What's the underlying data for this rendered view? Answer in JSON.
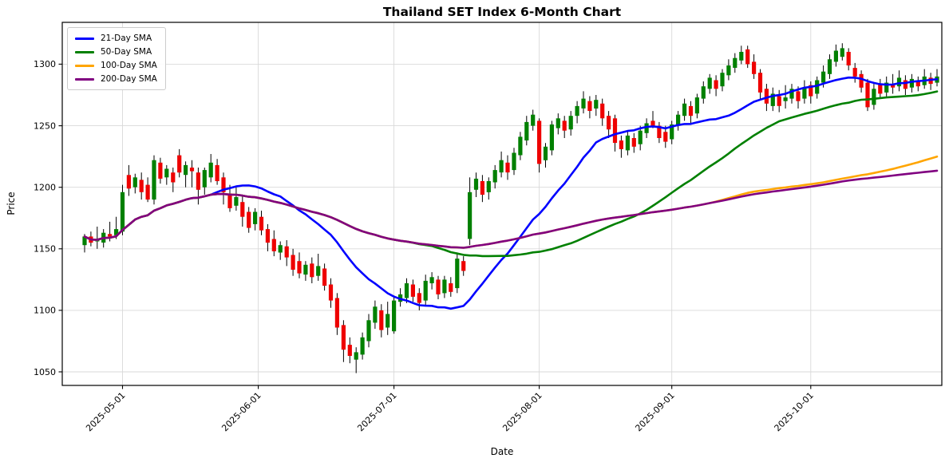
{
  "chart_data": {
    "type": "candlestick",
    "title": "Thailand SET Index 6-Month Chart",
    "xlabel": "Date",
    "ylabel": "Price",
    "ylim": [
      1039,
      1334
    ],
    "yticks": [
      1050,
      1100,
      1150,
      1200,
      1250,
      1300
    ],
    "xticks": [
      {
        "index": 6,
        "label": "2025-05-01"
      },
      {
        "index": 27.5,
        "label": "2025-06-01"
      },
      {
        "index": 49,
        "label": "2025-07-01"
      },
      {
        "index": 72,
        "label": "2025-08-01"
      },
      {
        "index": 93,
        "label": "2025-09-01"
      },
      {
        "index": 115,
        "label": "2025-10-01"
      }
    ],
    "grid": true,
    "legend_position": "upper-left",
    "colors": {
      "up": "#008000",
      "down": "#ee0000",
      "wick": "#000000",
      "grid": "#d9d9d9",
      "spine": "#000000"
    },
    "overlays": [
      {
        "name": "21-Day SMA",
        "window": 21,
        "color": "#0000ff"
      },
      {
        "name": "50-Day SMA",
        "window": 50,
        "color": "#008000"
      },
      {
        "name": "100-Day SMA",
        "window": 100,
        "color": "#ffa500"
      },
      {
        "name": "200-Day SMA",
        "window": 200,
        "color": "#800080"
      }
    ],
    "dates": [
      "2025-04-23",
      "2025-04-24",
      "2025-04-25",
      "2025-04-28",
      "2025-04-29",
      "2025-04-30",
      "2025-05-01",
      "2025-05-02",
      "2025-05-05",
      "2025-05-06",
      "2025-05-07",
      "2025-05-08",
      "2025-05-09",
      "2025-05-12",
      "2025-05-13",
      "2025-05-14",
      "2025-05-15",
      "2025-05-16",
      "2025-05-19",
      "2025-05-20",
      "2025-05-21",
      "2025-05-22",
      "2025-05-23",
      "2025-05-26",
      "2025-05-27",
      "2025-05-28",
      "2025-05-29",
      "2025-05-30",
      "2025-06-02",
      "2025-06-03",
      "2025-06-04",
      "2025-06-05",
      "2025-06-06",
      "2025-06-09",
      "2025-06-10",
      "2025-06-11",
      "2025-06-12",
      "2025-06-13",
      "2025-06-16",
      "2025-06-17",
      "2025-06-18",
      "2025-06-19",
      "2025-06-20",
      "2025-06-23",
      "2025-06-24",
      "2025-06-25",
      "2025-06-26",
      "2025-06-27",
      "2025-06-30",
      "2025-07-01",
      "2025-07-02",
      "2025-07-03",
      "2025-07-04",
      "2025-07-07",
      "2025-07-08",
      "2025-07-09",
      "2025-07-10",
      "2025-07-11",
      "2025-07-14",
      "2025-07-15",
      "2025-07-16",
      "2025-07-17",
      "2025-07-18",
      "2025-07-21",
      "2025-07-22",
      "2025-07-23",
      "2025-07-24",
      "2025-07-25",
      "2025-07-28",
      "2025-07-29",
      "2025-07-30",
      "2025-07-31",
      "2025-08-01",
      "2025-08-04",
      "2025-08-05",
      "2025-08-06",
      "2025-08-07",
      "2025-08-08",
      "2025-08-11",
      "2025-08-12",
      "2025-08-13",
      "2025-08-14",
      "2025-08-15",
      "2025-08-18",
      "2025-08-19",
      "2025-08-20",
      "2025-08-21",
      "2025-08-22",
      "2025-08-25",
      "2025-08-26",
      "2025-08-27",
      "2025-08-28",
      "2025-08-29",
      "2025-09-01",
      "2025-09-02",
      "2025-09-03",
      "2025-09-04",
      "2025-09-05",
      "2025-09-08",
      "2025-09-09",
      "2025-09-10",
      "2025-09-11",
      "2025-09-12",
      "2025-09-15",
      "2025-09-16",
      "2025-09-17",
      "2025-09-18",
      "2025-09-19",
      "2025-09-22",
      "2025-09-23",
      "2025-09-24",
      "2025-09-25",
      "2025-09-26",
      "2025-09-29",
      "2025-09-30",
      "2025-10-01",
      "2025-10-02",
      "2025-10-03",
      "2025-10-06",
      "2025-10-07",
      "2025-10-08",
      "2025-10-09",
      "2025-10-10",
      "2025-10-13",
      "2025-10-14",
      "2025-10-15",
      "2025-10-16",
      "2025-10-17",
      "2025-10-20",
      "2025-10-21",
      "2025-10-22",
      "2025-10-23",
      "2025-10-24",
      "2025-10-27",
      "2025-10-28",
      "2025-10-29"
    ],
    "ohlc": [
      [
        1153,
        1162,
        1147,
        1160
      ],
      [
        1160,
        1164,
        1152,
        1155
      ],
      [
        1156,
        1168,
        1150,
        1157
      ],
      [
        1155,
        1166,
        1151,
        1163
      ],
      [
        1162,
        1172,
        1156,
        1160
      ],
      [
        1161,
        1176,
        1158,
        1166
      ],
      [
        1164,
        1202,
        1161,
        1196
      ],
      [
        1210,
        1218,
        1193,
        1199
      ],
      [
        1200,
        1211,
        1195,
        1208
      ],
      [
        1206,
        1212,
        1190,
        1196
      ],
      [
        1202,
        1208,
        1188,
        1190
      ],
      [
        1190,
        1226,
        1186,
        1222
      ],
      [
        1220,
        1224,
        1203,
        1207
      ],
      [
        1208,
        1218,
        1202,
        1215
      ],
      [
        1212,
        1216,
        1196,
        1204
      ],
      [
        1226,
        1231,
        1208,
        1212
      ],
      [
        1210,
        1221,
        1200,
        1218
      ],
      [
        1216,
        1222,
        1200,
        1213
      ],
      [
        1212,
        1216,
        1186,
        1198
      ],
      [
        1200,
        1216,
        1194,
        1214
      ],
      [
        1208,
        1227,
        1204,
        1220
      ],
      [
        1218,
        1223,
        1202,
        1205
      ],
      [
        1208,
        1212,
        1186,
        1196
      ],
      [
        1195,
        1202,
        1180,
        1183
      ],
      [
        1185,
        1200,
        1181,
        1192
      ],
      [
        1188,
        1193,
        1168,
        1176
      ],
      [
        1180,
        1184,
        1163,
        1167
      ],
      [
        1170,
        1183,
        1165,
        1180
      ],
      [
        1176,
        1181,
        1161,
        1165
      ],
      [
        1166,
        1170,
        1148,
        1155
      ],
      [
        1158,
        1165,
        1144,
        1148
      ],
      [
        1147,
        1156,
        1141,
        1153
      ],
      [
        1152,
        1157,
        1136,
        1143
      ],
      [
        1145,
        1150,
        1128,
        1133
      ],
      [
        1140,
        1147,
        1126,
        1130
      ],
      [
        1129,
        1140,
        1124,
        1137
      ],
      [
        1138,
        1143,
        1122,
        1127
      ],
      [
        1128,
        1146,
        1124,
        1136
      ],
      [
        1134,
        1138,
        1116,
        1120
      ],
      [
        1121,
        1126,
        1102,
        1108
      ],
      [
        1110,
        1114,
        1080,
        1086
      ],
      [
        1088,
        1092,
        1058,
        1068
      ],
      [
        1072,
        1078,
        1057,
        1063
      ],
      [
        1060,
        1070,
        1049,
        1066
      ],
      [
        1064,
        1082,
        1060,
        1078
      ],
      [
        1075,
        1097,
        1070,
        1092
      ],
      [
        1090,
        1108,
        1085,
        1103
      ],
      [
        1100,
        1105,
        1078,
        1084
      ],
      [
        1086,
        1107,
        1080,
        1097
      ],
      [
        1083,
        1112,
        1081,
        1108
      ],
      [
        1107,
        1118,
        1103,
        1113
      ],
      [
        1110,
        1126,
        1106,
        1122
      ],
      [
        1121,
        1125,
        1107,
        1111
      ],
      [
        1114,
        1118,
        1100,
        1106
      ],
      [
        1108,
        1129,
        1104,
        1124
      ],
      [
        1122,
        1131,
        1117,
        1127
      ],
      [
        1125,
        1128,
        1109,
        1113
      ],
      [
        1114,
        1128,
        1110,
        1125
      ],
      [
        1122,
        1127,
        1111,
        1115
      ],
      [
        1118,
        1147,
        1114,
        1142
      ],
      [
        1140,
        1144,
        1128,
        1132
      ],
      [
        1158,
        1208,
        1153,
        1196
      ],
      [
        1198,
        1212,
        1192,
        1207
      ],
      [
        1205,
        1210,
        1188,
        1194
      ],
      [
        1196,
        1208,
        1190,
        1205
      ],
      [
        1204,
        1218,
        1199,
        1214
      ],
      [
        1212,
        1229,
        1208,
        1222
      ],
      [
        1220,
        1226,
        1206,
        1212
      ],
      [
        1214,
        1232,
        1210,
        1228
      ],
      [
        1226,
        1245,
        1222,
        1241
      ],
      [
        1238,
        1258,
        1234,
        1253
      ],
      [
        1250,
        1263,
        1246,
        1259
      ],
      [
        1254,
        1256,
        1212,
        1219
      ],
      [
        1222,
        1236,
        1216,
        1233
      ],
      [
        1230,
        1254,
        1226,
        1251
      ],
      [
        1248,
        1260,
        1243,
        1256
      ],
      [
        1254,
        1258,
        1240,
        1246
      ],
      [
        1247,
        1262,
        1242,
        1258
      ],
      [
        1258,
        1270,
        1252,
        1266
      ],
      [
        1264,
        1278,
        1260,
        1272
      ],
      [
        1270,
        1274,
        1256,
        1262
      ],
      [
        1264,
        1275,
        1258,
        1271
      ],
      [
        1268,
        1272,
        1250,
        1256
      ],
      [
        1258,
        1262,
        1240,
        1247
      ],
      [
        1256,
        1259,
        1229,
        1236
      ],
      [
        1238,
        1242,
        1224,
        1231
      ],
      [
        1230,
        1246,
        1226,
        1242
      ],
      [
        1240,
        1244,
        1228,
        1233
      ],
      [
        1235,
        1250,
        1230,
        1246
      ],
      [
        1244,
        1256,
        1240,
        1252
      ],
      [
        1254,
        1262,
        1248,
        1250
      ],
      [
        1250,
        1253,
        1236,
        1240
      ],
      [
        1245,
        1250,
        1232,
        1237
      ],
      [
        1239,
        1254,
        1235,
        1251
      ],
      [
        1250,
        1262,
        1246,
        1259
      ],
      [
        1258,
        1272,
        1254,
        1268
      ],
      [
        1266,
        1270,
        1252,
        1258
      ],
      [
        1260,
        1276,
        1256,
        1273
      ],
      [
        1272,
        1286,
        1268,
        1282
      ],
      [
        1280,
        1292,
        1276,
        1289
      ],
      [
        1287,
        1291,
        1274,
        1280
      ],
      [
        1282,
        1296,
        1278,
        1293
      ],
      [
        1291,
        1304,
        1287,
        1299
      ],
      [
        1297,
        1309,
        1293,
        1305
      ],
      [
        1303,
        1315,
        1300,
        1310
      ],
      [
        1312,
        1315,
        1297,
        1300
      ],
      [
        1302,
        1308,
        1288,
        1292
      ],
      [
        1293,
        1296,
        1272,
        1277
      ],
      [
        1280,
        1284,
        1262,
        1268
      ],
      [
        1266,
        1281,
        1262,
        1276
      ],
      [
        1274,
        1279,
        1261,
        1266
      ],
      [
        1270,
        1283,
        1264,
        1273
      ],
      [
        1272,
        1284,
        1268,
        1280
      ],
      [
        1278,
        1282,
        1264,
        1270
      ],
      [
        1272,
        1287,
        1268,
        1281
      ],
      [
        1283,
        1286,
        1268,
        1274
      ],
      [
        1276,
        1290,
        1272,
        1287
      ],
      [
        1285,
        1299,
        1281,
        1294
      ],
      [
        1292,
        1308,
        1288,
        1304
      ],
      [
        1302,
        1316,
        1298,
        1311
      ],
      [
        1306,
        1317,
        1303,
        1313
      ],
      [
        1310,
        1313,
        1295,
        1299
      ],
      [
        1297,
        1301,
        1285,
        1290
      ],
      [
        1292,
        1295,
        1277,
        1281
      ],
      [
        1285,
        1288,
        1262,
        1265
      ],
      [
        1267,
        1284,
        1263,
        1280
      ],
      [
        1284,
        1288,
        1272,
        1276
      ],
      [
        1277,
        1290,
        1273,
        1285
      ],
      [
        1284,
        1292,
        1276,
        1281
      ],
      [
        1282,
        1295,
        1278,
        1289
      ],
      [
        1287,
        1291,
        1275,
        1280
      ],
      [
        1281,
        1292,
        1277,
        1288
      ],
      [
        1286,
        1290,
        1278,
        1282
      ],
      [
        1283,
        1296,
        1280,
        1290
      ],
      [
        1289,
        1293,
        1279,
        1284
      ],
      [
        1285,
        1296,
        1282,
        1290
      ]
    ]
  }
}
